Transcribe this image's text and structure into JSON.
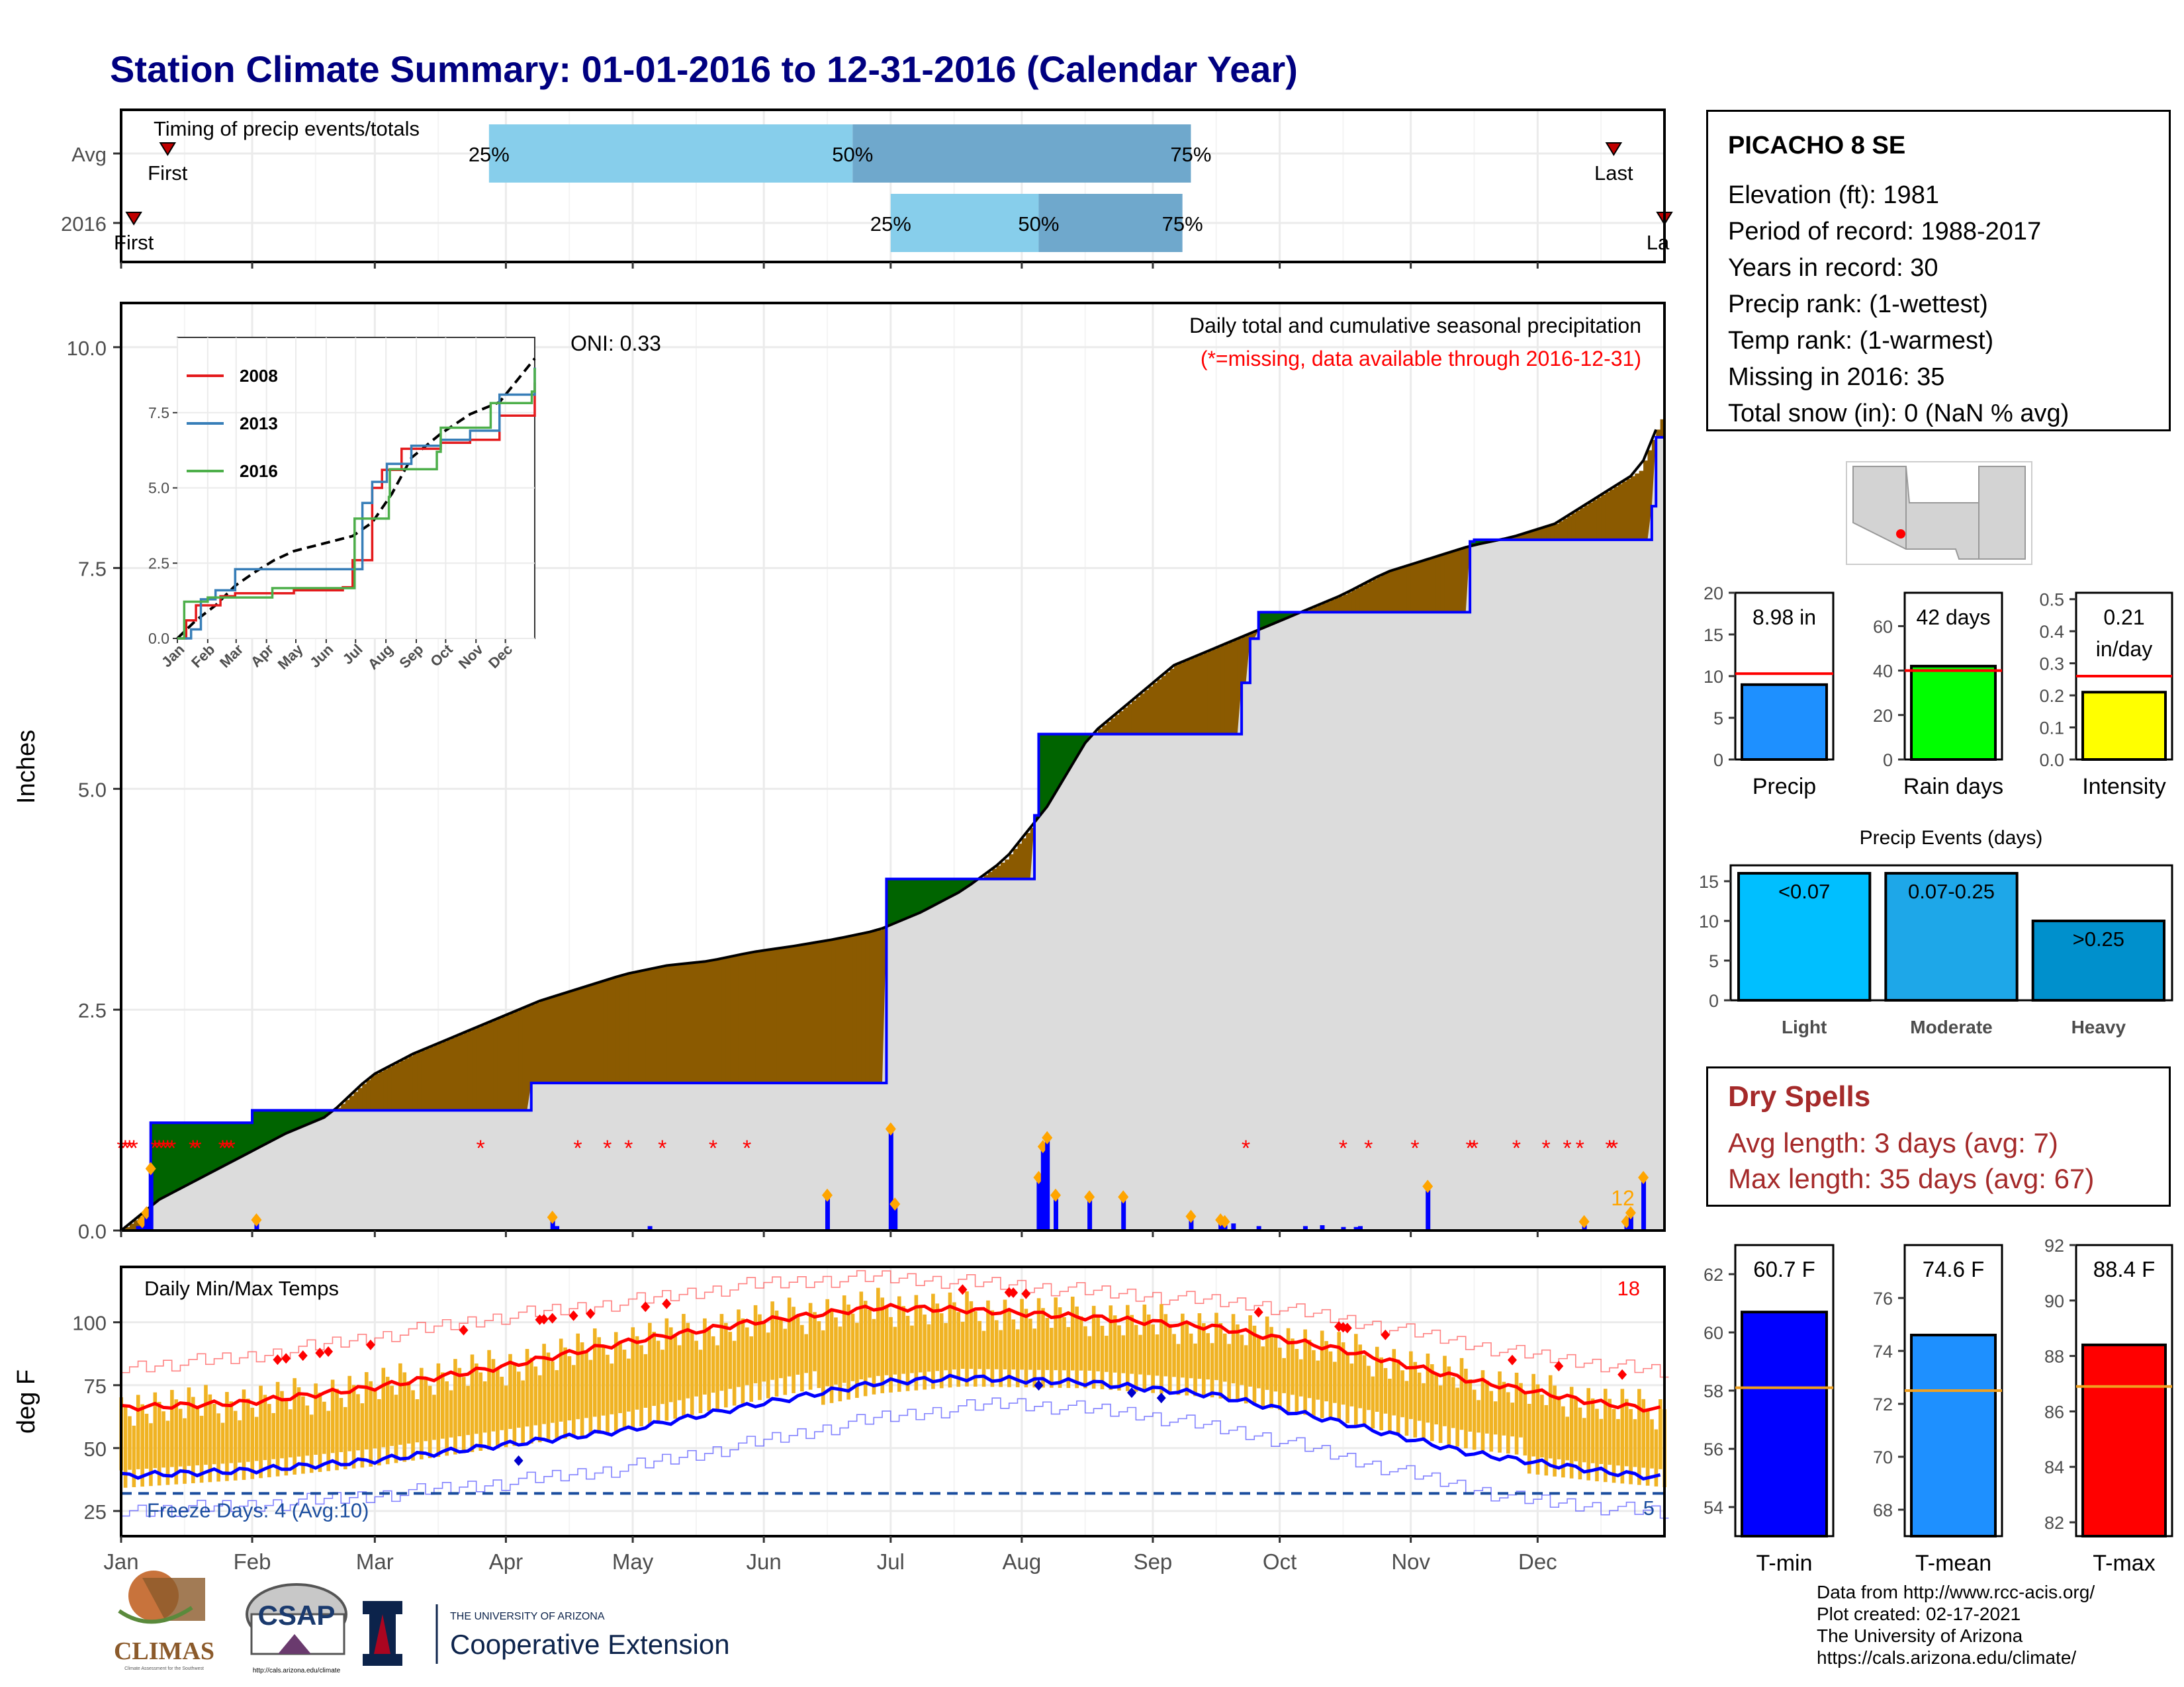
{
  "title": "Station Climate Summary: 01-01-2016 to 12-31-2016 (Calendar Year)",
  "station": {
    "name": "PICACHO 8 SE",
    "lines": [
      "Elevation (ft): 1981",
      "Period of record: 1988-2017",
      "Years in record: 30",
      "Precip rank:  (1-wettest)",
      "Temp rank:  (1-warmest)",
      "Missing in 2016: 35",
      "Total snow (in): 0 (NaN % avg)"
    ]
  },
  "dry_spells": {
    "title": "Dry Spells",
    "avg_length": "Avg length: 3 days (avg: 7)",
    "max_length": "Max length: 35 days (avg: 67)"
  },
  "footer": [
    "Data from http://www.rcc-acis.org/",
    "Plot created: 02-17-2021",
    "The University of Arizona",
    "https://cals.arizona.edu/climate/"
  ],
  "logos": {
    "climas": "CLIMAS",
    "climas_sub": "Climate Assessment for the Southwest",
    "csap": "CSAP",
    "csap_url": "http://cals.arizona.edu/climate",
    "ua_line1": "THE UNIVERSITY OF ARIZONA",
    "ua_line2": "Cooperative Extension"
  },
  "colors": {
    "title": "#000080",
    "above_avg": "#006400",
    "below_avg": "#8b5a00",
    "avg_area": "#dcdcdc",
    "obs_line": "#0000ff",
    "timing_light": "#87ceeb",
    "timing_dark": "#6fa8cc",
    "temp_bar": "#f0b323",
    "tmax_line": "#ff0000",
    "tmin_line": "#0000ff",
    "dry_text": "#a52a2a"
  },
  "chart_data": [
    {
      "id": "timing",
      "type": "bar",
      "title": "Timing of precip events/totals",
      "x_axis_months": [
        "Jan",
        "Feb",
        "Mar",
        "Apr",
        "May",
        "Jun",
        "Jul",
        "Aug",
        "Sep",
        "Oct",
        "Nov",
        "Dec"
      ],
      "rows": [
        {
          "label": "Avg",
          "first_label": "First",
          "last_label": "Last",
          "first_day": 12,
          "last_day": 354,
          "q25": 88,
          "q50": 174,
          "q75": 254,
          "q_labels": [
            "25%",
            "50%",
            "75%"
          ]
        },
        {
          "label": "2016",
          "first_label": "First",
          "last_label": "La",
          "first_day": 4,
          "last_day": 366,
          "q25": 183,
          "q50": 218,
          "q75": 252,
          "q_labels": [
            "25%",
            "50%",
            "75%"
          ]
        }
      ]
    },
    {
      "id": "precip",
      "type": "area",
      "title": "Daily total and cumulative seasonal precipitation",
      "subtitle": "(*=missing, data available through 2016-12-31)",
      "ylabel": "Inches",
      "ylim": [
        0,
        10.5
      ],
      "yticks": [
        "0.0",
        "2.5",
        "5.0",
        "7.5",
        "10.0"
      ],
      "annotations": {
        "oni": "ONI: 0.33",
        "count": "12"
      },
      "observed_cumulative": {
        "day": [
          1,
          7,
          8,
          31,
          32,
          97,
          98,
          181,
          182,
          216,
          217,
          218,
          266,
          268,
          270,
          320,
          321,
          363,
          364,
          366
        ],
        "inches": [
          0,
          0,
          1.22,
          1.22,
          1.36,
          1.36,
          1.67,
          1.67,
          3.98,
          3.98,
          4.7,
          5.62,
          6.2,
          6.7,
          7.0,
          7.8,
          7.82,
          8.2,
          8.98,
          8.98
        ]
      },
      "average_cumulative": {
        "day": [
          1,
          10,
          20,
          30,
          40,
          50,
          60,
          70,
          80,
          90,
          100,
          110,
          120,
          130,
          140,
          150,
          160,
          170,
          180,
          190,
          200,
          210,
          220,
          230,
          240,
          250,
          260,
          270,
          280,
          290,
          300,
          310,
          320,
          330,
          340,
          350,
          360,
          366
        ],
        "inches": [
          0,
          0.35,
          0.6,
          0.85,
          1.1,
          1.3,
          1.75,
          2.0,
          2.2,
          2.4,
          2.6,
          2.75,
          2.9,
          3.0,
          3.05,
          3.15,
          3.22,
          3.3,
          3.4,
          3.6,
          3.85,
          4.2,
          4.8,
          5.6,
          6.0,
          6.4,
          6.6,
          6.8,
          7.0,
          7.2,
          7.45,
          7.6,
          7.75,
          7.85,
          8.0,
          8.3,
          8.6,
          9.3
        ]
      },
      "daily_totals": {
        "day": [
          5,
          6,
          7,
          8,
          33,
          103,
          104,
          126,
          168,
          183,
          184,
          218,
          219,
          220,
          222,
          230,
          238,
          254,
          261,
          262,
          264,
          270,
          281,
          285,
          290,
          293,
          294,
          310,
          347,
          357,
          358,
          361
        ],
        "inches": [
          0.05,
          0.1,
          0.2,
          0.7,
          0.12,
          0.15,
          0.05,
          0.05,
          0.4,
          1.15,
          0.3,
          0.6,
          0.95,
          1.05,
          0.4,
          0.38,
          0.38,
          0.16,
          0.12,
          0.1,
          0.08,
          0.05,
          0.05,
          0.06,
          0.04,
          0.04,
          0.05,
          0.5,
          0.1,
          0.1,
          0.2,
          0.6
        ]
      },
      "missing_days": [
        1,
        2,
        3,
        4,
        9,
        10,
        11,
        12,
        13,
        18,
        19,
        25,
        26,
        27,
        86,
        109,
        116,
        121,
        129,
        141,
        149,
        267,
        290,
        296,
        307,
        320,
        321,
        331,
        338,
        343,
        346,
        353,
        354
      ]
    },
    {
      "id": "inset",
      "type": "line",
      "ylim": [
        0,
        10
      ],
      "yticks": [
        "0.0",
        "2.5",
        "5.0",
        "7.5"
      ],
      "xticks": [
        "Jan",
        "Feb",
        "Mar",
        "Apr",
        "May",
        "Jun",
        "Jul",
        "Aug",
        "Sep",
        "Oct",
        "Nov",
        "Dec"
      ],
      "series": [
        {
          "name": "2008",
          "color": "#e41a1c",
          "day": [
            1,
            10,
            20,
            45,
            60,
            120,
            170,
            180,
            200,
            210,
            230,
            270,
            300,
            330,
            366
          ],
          "inches": [
            0,
            0.6,
            1.1,
            1.4,
            1.5,
            1.6,
            1.7,
            2.6,
            5.0,
            5.6,
            6.3,
            6.5,
            6.6,
            7.4,
            8.5
          ]
        },
        {
          "name": "2013",
          "color": "#377eb8",
          "day": [
            1,
            15,
            25,
            40,
            60,
            150,
            180,
            190,
            200,
            215,
            240,
            270,
            300,
            330,
            366
          ],
          "inches": [
            0,
            0.3,
            1.3,
            1.6,
            2.3,
            2.3,
            2.3,
            4.5,
            5.2,
            5.8,
            6.4,
            6.6,
            6.9,
            8.1,
            9.0
          ]
        },
        {
          "name": "2016",
          "color": "#4daf4a",
          "day": [
            1,
            8,
            31,
            32,
            97,
            98,
            181,
            182,
            216,
            217,
            218,
            266,
            270,
            321,
            363,
            366
          ],
          "inches": [
            0,
            1.22,
            1.22,
            1.36,
            1.36,
            1.67,
            1.67,
            3.98,
            3.98,
            4.7,
            5.62,
            6.2,
            7.0,
            7.82,
            8.2,
            8.98
          ]
        }
      ],
      "average": {
        "day": [
          1,
          20,
          40,
          60,
          80,
          100,
          120,
          150,
          180,
          200,
          220,
          240,
          270,
          300,
          330,
          366
        ],
        "inches": [
          0,
          0.6,
          1.1,
          1.75,
          2.2,
          2.6,
          2.9,
          3.15,
          3.4,
          3.85,
          4.8,
          6.0,
          6.8,
          7.45,
          7.85,
          9.3
        ]
      }
    },
    {
      "id": "temps",
      "type": "bar",
      "title": "Daily Min/Max Temps",
      "ylabel": "deg F",
      "ylim": [
        15,
        122
      ],
      "yticks": [
        "25",
        "50",
        "75",
        "100"
      ],
      "xticks": [
        "Jan",
        "Feb",
        "Mar",
        "Apr",
        "May",
        "Jun",
        "Jul",
        "Aug",
        "Sep",
        "Oct",
        "Nov",
        "Dec"
      ],
      "record_count_high": "18",
      "record_count_low": "5",
      "freeze_label": "Freeze Days: 4 (Avg:10)",
      "freeze_threshold": 32,
      "avg_tmax": {
        "day": [
          1,
          30,
          60,
          90,
          120,
          150,
          180,
          200,
          230,
          260,
          290,
          320,
          350,
          366
        ],
        "degF": [
          66,
          68,
          74,
          82,
          92,
          100,
          106,
          105,
          102,
          98,
          89,
          77,
          68,
          65
        ]
      },
      "avg_tmin": {
        "day": [
          1,
          30,
          60,
          90,
          120,
          150,
          180,
          200,
          230,
          260,
          290,
          320,
          350,
          366
        ],
        "degF": [
          39,
          41,
          45,
          51,
          57,
          67,
          76,
          78,
          76,
          71,
          60,
          48,
          41,
          38
        ]
      },
      "record_high": {
        "day": [
          1,
          30,
          60,
          90,
          120,
          150,
          180,
          210,
          240,
          270,
          300,
          330,
          366
        ],
        "degF": [
          82,
          86,
          94,
          102,
          108,
          115,
          118,
          115,
          111,
          107,
          98,
          88,
          80
        ]
      },
      "record_low": {
        "day": [
          1,
          30,
          60,
          90,
          120,
          150,
          180,
          210,
          240,
          270,
          300,
          330,
          366
        ],
        "degF": [
          25,
          27,
          31,
          36,
          42,
          52,
          62,
          68,
          64,
          55,
          42,
          30,
          24
        ]
      }
    },
    {
      "id": "bars_precip",
      "type": "bar",
      "panels": [
        {
          "category": "Precip",
          "value": 8.98,
          "label": "8.98 in",
          "avg": 10.3,
          "ylim": [
            0,
            20
          ],
          "yticks": [
            "0",
            "5",
            "10",
            "15",
            "20"
          ],
          "color": "#1e90ff"
        },
        {
          "category": "Rain days",
          "value": 42,
          "label": "42 days",
          "avg": 40,
          "ylim": [
            0,
            75
          ],
          "yticks": [
            "0",
            "20",
            "40",
            "60"
          ],
          "color": "#00ff00"
        },
        {
          "category": "Intensity",
          "value": 0.21,
          "label": "0.21",
          "label2": "in/day",
          "avg": 0.26,
          "ylim": [
            0,
            0.52
          ],
          "yticks": [
            "0.0",
            "0.1",
            "0.2",
            "0.3",
            "0.4",
            "0.5"
          ],
          "color": "#ffff00"
        }
      ]
    },
    {
      "id": "events",
      "type": "bar",
      "title": "Precip Events (days)",
      "categories": [
        "Light",
        "Moderate",
        "Heavy"
      ],
      "values": [
        16,
        16,
        10
      ],
      "value_labels": [
        "<0.07",
        "0.07-0.25",
        ">0.25"
      ],
      "colors": [
        "#00bfff",
        "#1ea7e8",
        "#0090cc"
      ],
      "ylim": [
        0,
        17
      ],
      "yticks": [
        "0",
        "5",
        "10",
        "15"
      ]
    },
    {
      "id": "bars_temp",
      "type": "bar",
      "panels": [
        {
          "category": "T-min",
          "value": 60.7,
          "label": "60.7 F",
          "avg": 58.1,
          "ylim": [
            53,
            63
          ],
          "yticks": [
            "54",
            "56",
            "58",
            "60",
            "62"
          ],
          "color": "#0000ff"
        },
        {
          "category": "T-mean",
          "value": 74.6,
          "label": "74.6 F",
          "avg": 72.5,
          "ylim": [
            67,
            78
          ],
          "yticks": [
            "68",
            "70",
            "72",
            "74",
            "76"
          ],
          "color": "#1e90ff"
        },
        {
          "category": "T-max",
          "value": 88.4,
          "label": "88.4 F",
          "avg": 86.9,
          "ylim": [
            81.5,
            92
          ],
          "yticks": [
            "82",
            "84",
            "86",
            "88",
            "90",
            "92"
          ],
          "color": "#ff0000"
        }
      ]
    }
  ]
}
